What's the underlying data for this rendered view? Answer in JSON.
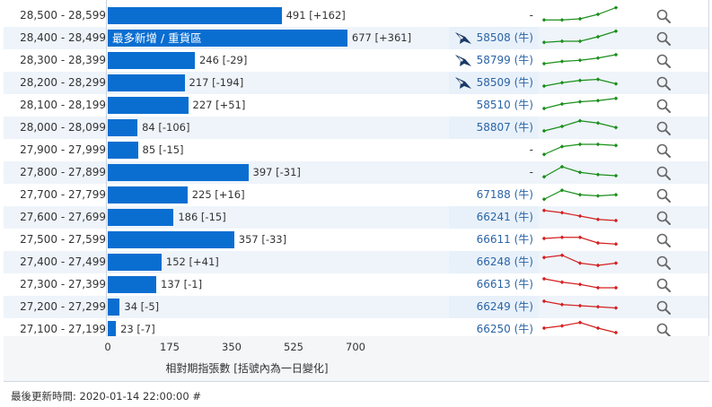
{
  "chart_data": {
    "type": "bar",
    "orientation": "horizontal",
    "xlabel": "相對期指張數 [括號內為一日變化]",
    "xlim": [
      0,
      700
    ],
    "xticks": [
      0,
      175,
      350,
      525,
      700
    ],
    "rows": [
      {
        "range": "28,500 - 28,599",
        "value": 491,
        "change": "[+162]",
        "label": "",
        "warrant": "-",
        "bear_icon": false,
        "spark_color": "#1a8f1a",
        "spark": [
          3,
          3,
          4,
          8,
          14
        ]
      },
      {
        "range": "28,400 - 28,499",
        "value": 677,
        "change": "[+361]",
        "label": "最多新增 / 重貨區",
        "warrant": "58508 (牛)",
        "bear_icon": true,
        "spark_color": "#1a8f1a",
        "spark": [
          3,
          4,
          4,
          8,
          13
        ]
      },
      {
        "range": "28,300 - 28,399",
        "value": 246,
        "change": "[-29]",
        "label": "",
        "warrant": "58799 (牛)",
        "bear_icon": true,
        "spark_color": "#1a8f1a",
        "spark": [
          4,
          6,
          7,
          9,
          12
        ]
      },
      {
        "range": "28,200 - 28,299",
        "value": 217,
        "change": "[-194]",
        "label": "",
        "warrant": "58509 (牛)",
        "bear_icon": true,
        "spark_color": "#1a8f1a",
        "spark": [
          4,
          7,
          9,
          10,
          6
        ]
      },
      {
        "range": "28,100 - 28,199",
        "value": 227,
        "change": "[+51]",
        "label": "",
        "warrant": "58510 (牛)",
        "bear_icon": false,
        "spark_color": "#1a8f1a",
        "spark": [
          4,
          8,
          10,
          11,
          13
        ]
      },
      {
        "range": "28,000 - 28,099",
        "value": 84,
        "change": "[-106]",
        "label": "",
        "warrant": "58807 (牛)",
        "bear_icon": false,
        "spark_color": "#1a8f1a",
        "spark": [
          4,
          8,
          13,
          11,
          7
        ]
      },
      {
        "range": "27,900 - 27,999",
        "value": 85,
        "change": "[-15]",
        "label": "",
        "warrant": "-",
        "bear_icon": false,
        "spark_color": "#1a8f1a",
        "spark": [
          3,
          10,
          12,
          12,
          11
        ]
      },
      {
        "range": "27,800 - 27,899",
        "value": 397,
        "change": "[-31]",
        "label": "",
        "warrant": "-",
        "bear_icon": false,
        "spark_color": "#1a8f1a",
        "spark": [
          3,
          12,
          7,
          5,
          4
        ]
      },
      {
        "range": "27,700 - 27,799",
        "value": 225,
        "change": "[+16]",
        "label": "",
        "warrant": "67188 (牛)",
        "bear_icon": false,
        "spark_color": "#1a8f1a",
        "spark": [
          3,
          11,
          7,
          6,
          7
        ]
      },
      {
        "range": "27,600 - 27,699",
        "value": 186,
        "change": "[-15]",
        "label": "",
        "warrant": "66241 (牛)",
        "bear_icon": false,
        "spark_color": "#d42020",
        "spark": [
          13,
          11,
          8,
          5,
          4
        ]
      },
      {
        "range": "27,500 - 27,599",
        "value": 357,
        "change": "[-33]",
        "label": "",
        "warrant": "66611 (牛)",
        "bear_icon": false,
        "spark_color": "#d42020",
        "spark": [
          8,
          9,
          9,
          4,
          3
        ]
      },
      {
        "range": "27,400 - 27,499",
        "value": 152,
        "change": "[+41]",
        "label": "",
        "warrant": "66248 (牛)",
        "bear_icon": false,
        "spark_color": "#d42020",
        "spark": [
          11,
          13,
          6,
          4,
          6
        ]
      },
      {
        "range": "27,300 - 27,399",
        "value": 137,
        "change": "[-1]",
        "label": "",
        "warrant": "66613 (牛)",
        "bear_icon": false,
        "spark_color": "#d42020",
        "spark": [
          12,
          9,
          7,
          4,
          4
        ]
      },
      {
        "range": "27,200 - 27,299",
        "value": 34,
        "change": "[-5]",
        "label": "",
        "warrant": "66249 (牛)",
        "bear_icon": false,
        "spark_color": "#d42020",
        "spark": [
          12,
          9,
          8,
          7,
          6
        ]
      },
      {
        "range": "27,100 - 27,199",
        "value": 23,
        "change": "[-7]",
        "label": "",
        "warrant": "66250 (牛)",
        "bear_icon": false,
        "spark_color": "#d42020",
        "spark": [
          8,
          10,
          13,
          8,
          4
        ]
      }
    ]
  },
  "footer": {
    "updated": "最後更新時間: 2020-01-14 22:00:00 #"
  },
  "icons": {
    "search": "magnifier-icon",
    "bull": "bull-warrant-icon"
  }
}
